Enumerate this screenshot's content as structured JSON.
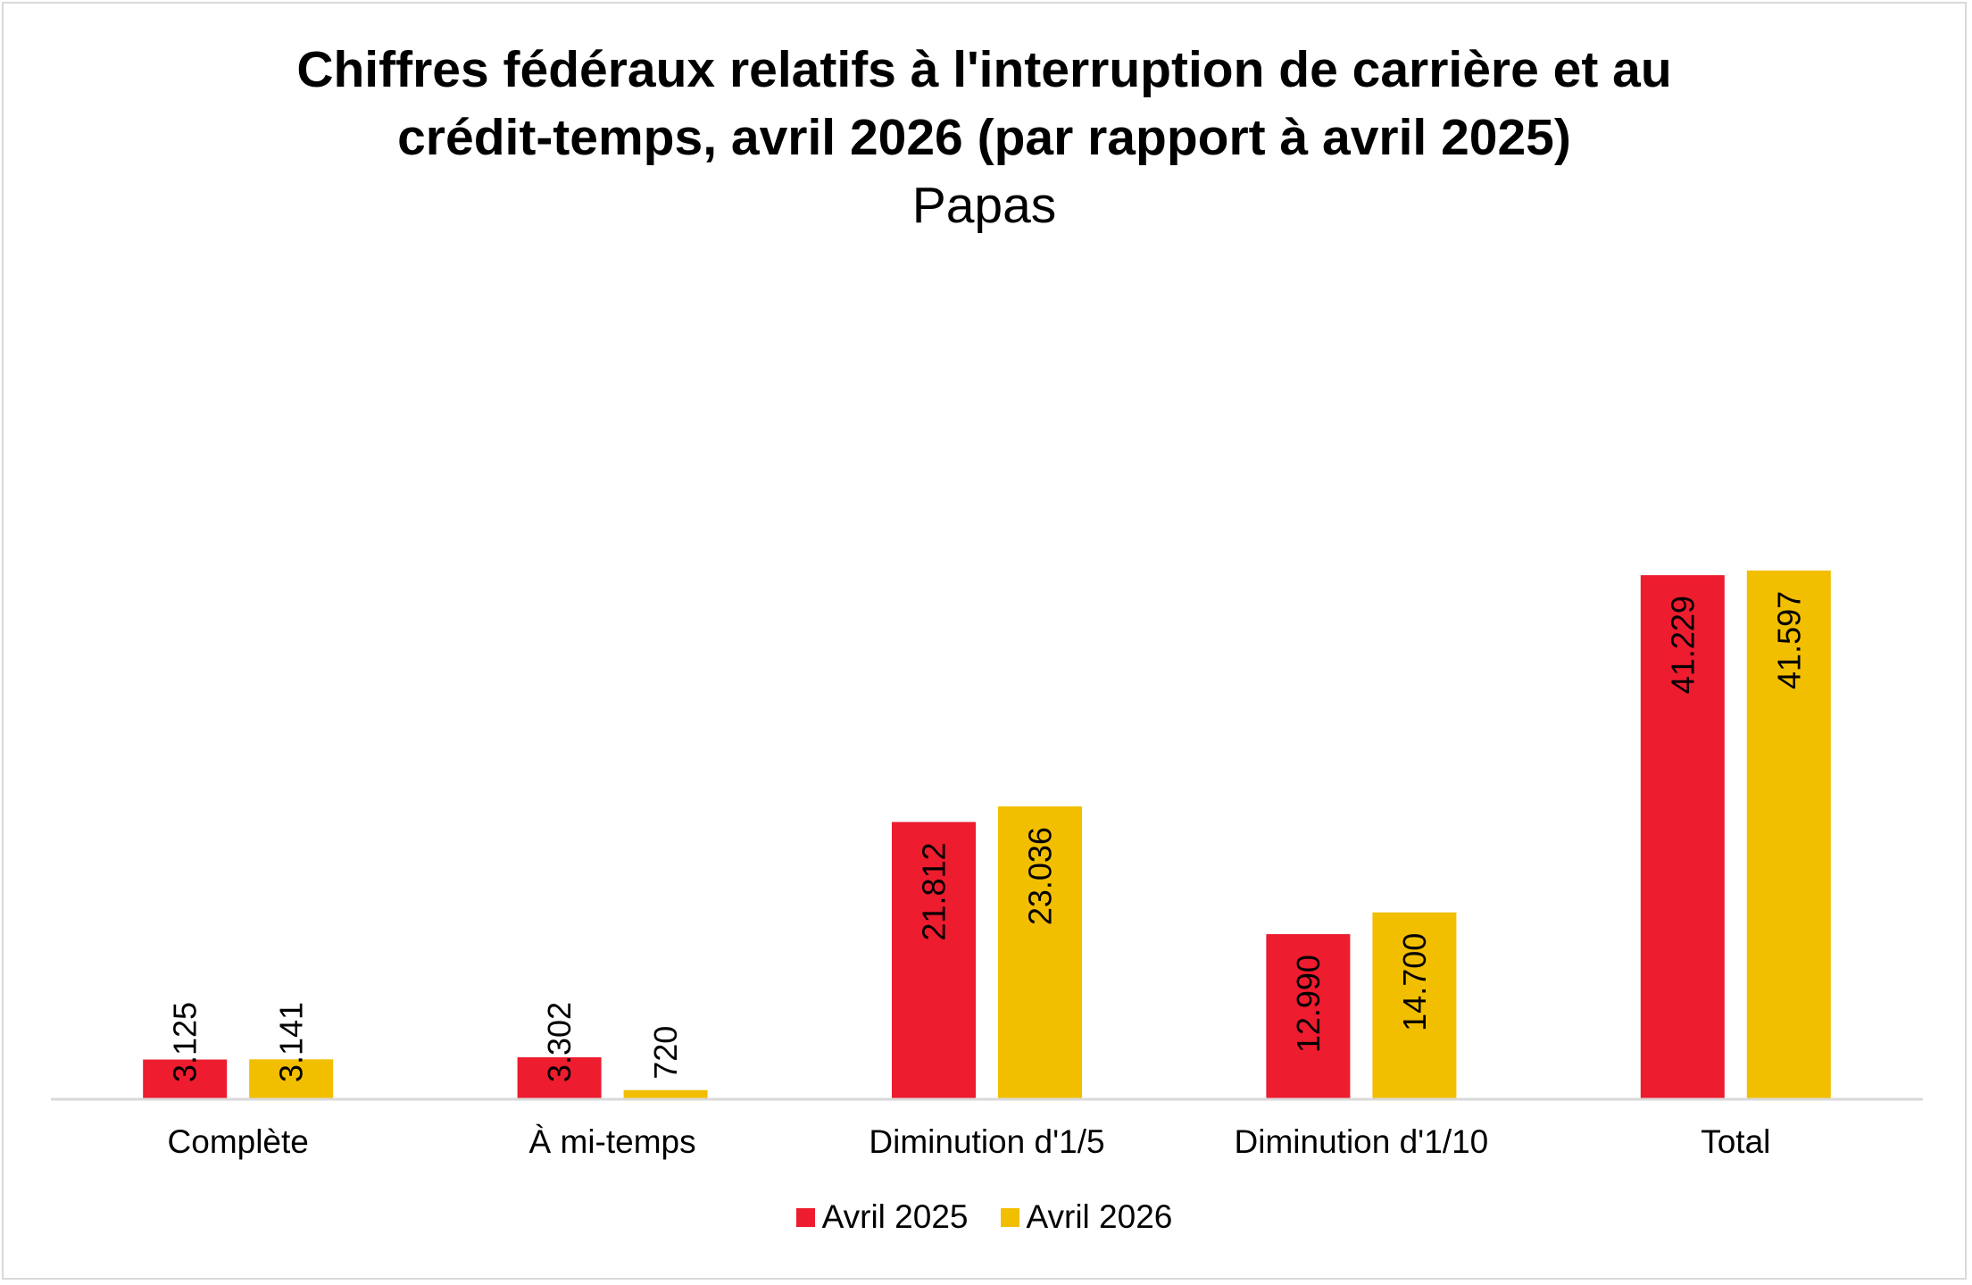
{
  "chart_data": {
    "type": "bar",
    "title": "Chiffres fédéraux relatifs à l'interruption de carrière et au crédit-temps, avril 2026 (par rapport à avril 2025)",
    "subtitle": "Papas",
    "categories": [
      "Complète",
      "À mi-temps",
      "Diminution d'1/5",
      "Diminution d'1/10",
      "Total"
    ],
    "series": [
      {
        "name": "Avril 2025",
        "color": "#ED1C2E",
        "values": [
          3125,
          3302,
          21812,
          12990,
          41229
        ],
        "labels": [
          "3.125",
          "3.302",
          "21.812",
          "12.990",
          "41.229"
        ]
      },
      {
        "name": "Avril 2026",
        "color": "#F2BE00",
        "values": [
          3141,
          720,
          23036,
          14700,
          41597
        ],
        "labels": [
          "3.141",
          "720",
          "23.036",
          "14.700",
          "41.597"
        ]
      }
    ],
    "ylim": [
      0,
      45000
    ],
    "grid": false,
    "legend_position": "bottom",
    "axis_color": "#d9d9d9"
  }
}
